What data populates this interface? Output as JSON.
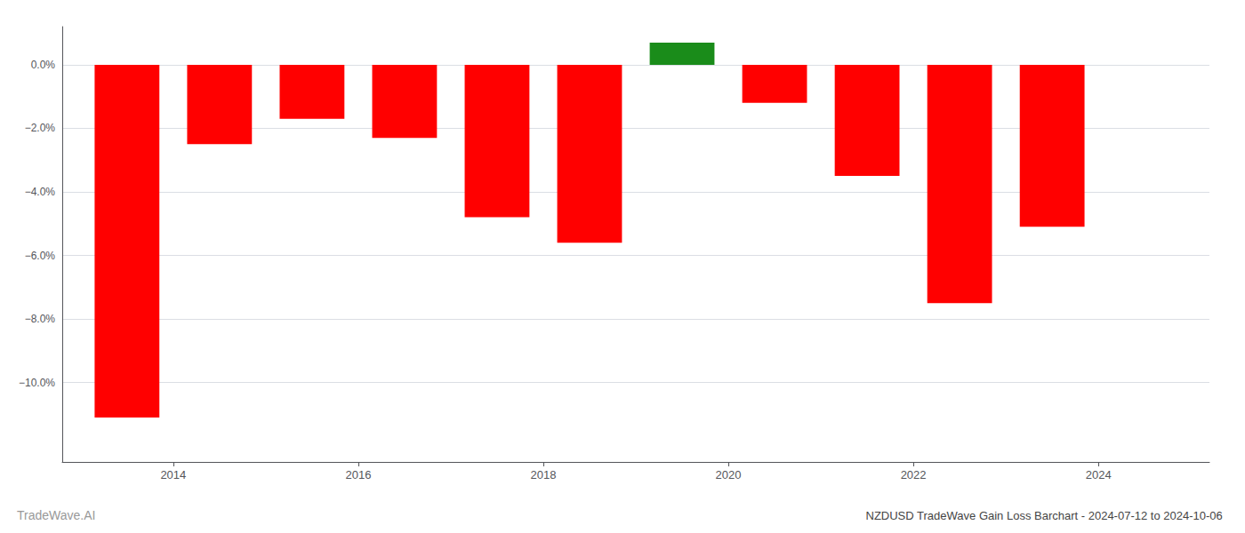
{
  "chart_data": {
    "type": "bar",
    "title": "NZDUSD TradeWave Gain Loss Barchart - 2024-07-12 to 2024-10-06",
    "annotations": [
      "TradeWave.AI"
    ],
    "x": [
      2013.5,
      2014.5,
      2015.5,
      2016.5,
      2017.5,
      2018.5,
      2019.5,
      2020.5,
      2021.5,
      2022.5,
      2023.5
    ],
    "values": [
      -11.1,
      -2.5,
      -1.7,
      -2.3,
      -4.8,
      -5.6,
      0.7,
      -1.2,
      -3.5,
      -7.5,
      -5.1
    ],
    "colors": [
      "#ff0000",
      "#ff0000",
      "#ff0000",
      "#ff0000",
      "#ff0000",
      "#ff0000",
      "#1a8c1a",
      "#ff0000",
      "#ff0000",
      "#ff0000",
      "#ff0000"
    ],
    "xlim": [
      2012.8,
      2025.2
    ],
    "xticks": [
      2014,
      2016,
      2018,
      2020,
      2022,
      2024
    ],
    "ylim": [
      -12.5,
      1.2
    ],
    "yticks": [
      {
        "value": 0.0,
        "label": "0.0%"
      },
      {
        "value": -2.0,
        "label": "−2.0%"
      },
      {
        "value": -4.0,
        "label": "−4.0%"
      },
      {
        "value": -6.0,
        "label": "−6.0%"
      },
      {
        "value": -8.0,
        "label": "−8.0%"
      },
      {
        "value": -10.0,
        "label": "−10.0%"
      }
    ],
    "grid": true
  }
}
